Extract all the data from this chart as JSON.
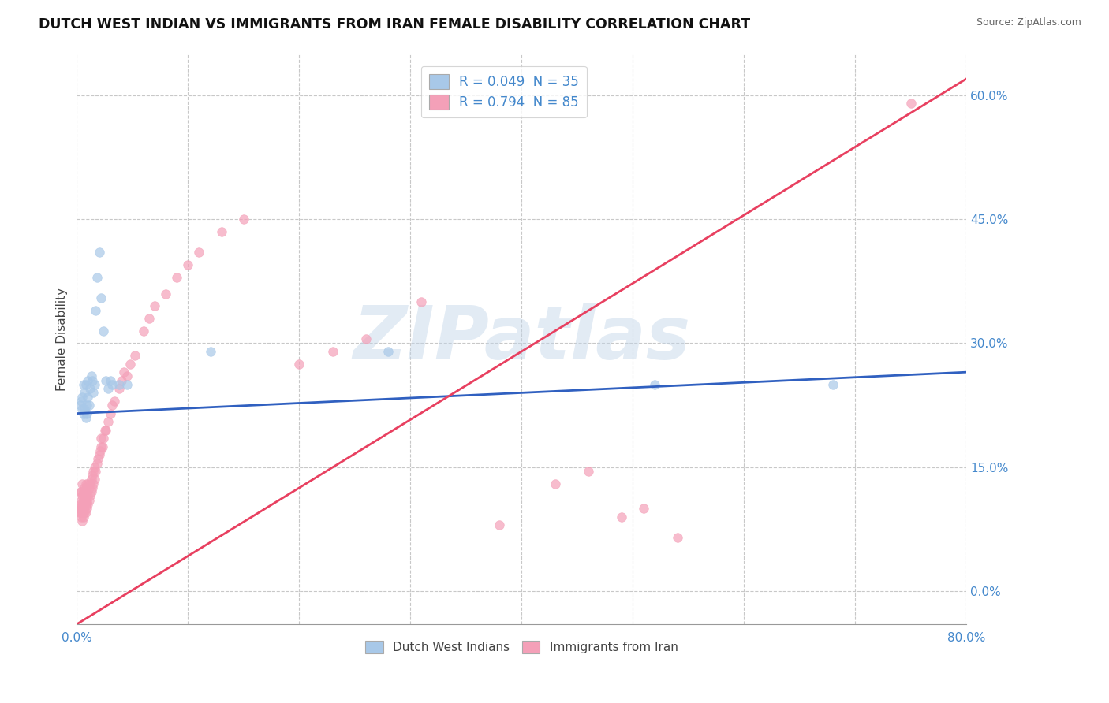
{
  "title": "DUTCH WEST INDIAN VS IMMIGRANTS FROM IRAN FEMALE DISABILITY CORRELATION CHART",
  "source": "Source: ZipAtlas.com",
  "ylabel": "Female Disability",
  "xlim": [
    0.0,
    0.8
  ],
  "ylim": [
    -0.04,
    0.65
  ],
  "ytick_vals": [
    0.0,
    0.15,
    0.3,
    0.45,
    0.6
  ],
  "watermark_text": "ZIPatlas",
  "blue_scatter_color": "#a8c8e8",
  "pink_scatter_color": "#f4a0b8",
  "blue_line_color": "#3060c0",
  "pink_line_color": "#e84060",
  "grid_color": "#c8c8c8",
  "background_color": "#ffffff",
  "legend_label_blue": "R = 0.049  N = 35",
  "legend_label_pink": "R = 0.794  N = 85",
  "bottom_legend_blue": "Dutch West Indians",
  "bottom_legend_pink": "Immigrants from Iran",
  "blue_line_x": [
    0.0,
    0.8
  ],
  "blue_line_y": [
    0.215,
    0.265
  ],
  "pink_line_x": [
    0.0,
    0.8
  ],
  "pink_line_y": [
    -0.04,
    0.62
  ],
  "blue_x": [
    0.003,
    0.004,
    0.005,
    0.005,
    0.006,
    0.006,
    0.007,
    0.007,
    0.008,
    0.008,
    0.009,
    0.009,
    0.01,
    0.01,
    0.011,
    0.012,
    0.013,
    0.014,
    0.015,
    0.016,
    0.017,
    0.018,
    0.02,
    0.022,
    0.024,
    0.026,
    0.028,
    0.03,
    0.032,
    0.038,
    0.045,
    0.12,
    0.28,
    0.52,
    0.68
  ],
  "blue_y": [
    0.225,
    0.23,
    0.22,
    0.235,
    0.215,
    0.25,
    0.22,
    0.24,
    0.21,
    0.25,
    0.215,
    0.225,
    0.235,
    0.255,
    0.225,
    0.245,
    0.26,
    0.255,
    0.24,
    0.25,
    0.34,
    0.38,
    0.41,
    0.355,
    0.315,
    0.255,
    0.245,
    0.255,
    0.25,
    0.25,
    0.25,
    0.29,
    0.29,
    0.25,
    0.25
  ],
  "pink_x": [
    0.002,
    0.002,
    0.003,
    0.003,
    0.003,
    0.004,
    0.004,
    0.004,
    0.004,
    0.005,
    0.005,
    0.005,
    0.005,
    0.005,
    0.006,
    0.006,
    0.006,
    0.006,
    0.007,
    0.007,
    0.007,
    0.007,
    0.008,
    0.008,
    0.008,
    0.008,
    0.009,
    0.009,
    0.009,
    0.01,
    0.01,
    0.01,
    0.011,
    0.011,
    0.012,
    0.012,
    0.013,
    0.013,
    0.014,
    0.014,
    0.015,
    0.015,
    0.016,
    0.016,
    0.017,
    0.018,
    0.019,
    0.02,
    0.021,
    0.022,
    0.022,
    0.023,
    0.024,
    0.025,
    0.026,
    0.028,
    0.03,
    0.032,
    0.034,
    0.038,
    0.04,
    0.042,
    0.045,
    0.048,
    0.052,
    0.06,
    0.065,
    0.07,
    0.08,
    0.09,
    0.1,
    0.11,
    0.13,
    0.15,
    0.2,
    0.23,
    0.26,
    0.31,
    0.38,
    0.43,
    0.46,
    0.49,
    0.51,
    0.54,
    0.75
  ],
  "pink_y": [
    0.1,
    0.095,
    0.095,
    0.105,
    0.12,
    0.09,
    0.1,
    0.11,
    0.12,
    0.085,
    0.095,
    0.105,
    0.115,
    0.13,
    0.09,
    0.1,
    0.11,
    0.12,
    0.095,
    0.105,
    0.115,
    0.125,
    0.095,
    0.105,
    0.115,
    0.13,
    0.1,
    0.11,
    0.125,
    0.105,
    0.115,
    0.13,
    0.11,
    0.125,
    0.115,
    0.13,
    0.12,
    0.135,
    0.125,
    0.14,
    0.13,
    0.145,
    0.135,
    0.15,
    0.145,
    0.155,
    0.16,
    0.165,
    0.17,
    0.175,
    0.185,
    0.175,
    0.185,
    0.195,
    0.195,
    0.205,
    0.215,
    0.225,
    0.23,
    0.245,
    0.255,
    0.265,
    0.26,
    0.275,
    0.285,
    0.315,
    0.33,
    0.345,
    0.36,
    0.38,
    0.395,
    0.41,
    0.435,
    0.45,
    0.275,
    0.29,
    0.305,
    0.35,
    0.08,
    0.13,
    0.145,
    0.09,
    0.1,
    0.065,
    0.59
  ]
}
